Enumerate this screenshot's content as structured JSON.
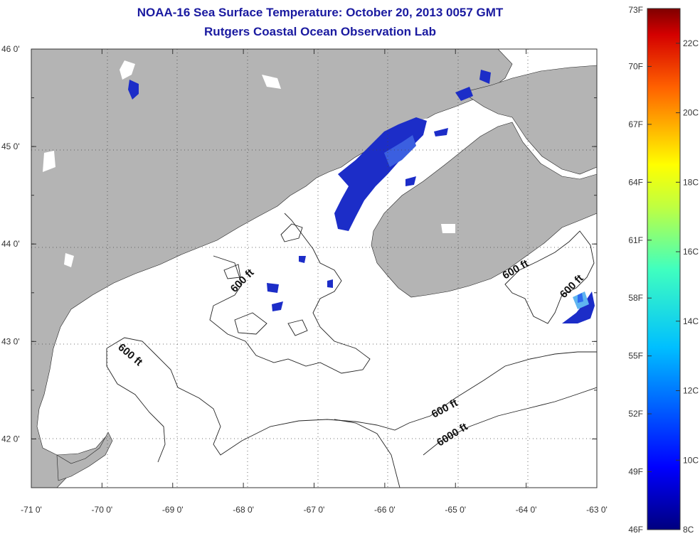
{
  "header": {
    "title": "NOAA-16 Sea Surface Temperature:  October 20, 2013 0057 GMT",
    "subtitle": "Rutgers Coastal Ocean Observation Lab"
  },
  "map": {
    "lat_ticks": [
      "46 0'",
      "45 0'",
      "44 0'",
      "43 0'",
      "42 0'"
    ],
    "lon_ticks": [
      "-71 0'",
      "-70 0'",
      "-69 0'",
      "-68 0'",
      "-67 0'",
      "-66 0'",
      "-65 0'",
      "-64 0'",
      "-63 0'"
    ],
    "lat_range": [
      41.5,
      46.0
    ],
    "lon_range": [
      -71,
      -63
    ],
    "contour_labels": [
      "600 ft",
      "600 ft",
      "600 ft",
      "600 ft",
      "600 ft",
      "6000 ft"
    ],
    "colors": {
      "land": "#b4b4b4",
      "ocean": "#ffffff",
      "sst_cold": "#1c2dc8",
      "sst_warm": "#5a8cff"
    }
  },
  "colorbar": {
    "fahrenheit": [
      "73F",
      "70F",
      "67F",
      "64F",
      "61F",
      "58F",
      "55F",
      "52F",
      "49F",
      "46F"
    ],
    "celsius": [
      "22C",
      "20C",
      "18C",
      "16C",
      "14C",
      "12C",
      "10C",
      "8C"
    ],
    "f_range": [
      46,
      73
    ],
    "c_range": [
      8,
      23
    ]
  }
}
